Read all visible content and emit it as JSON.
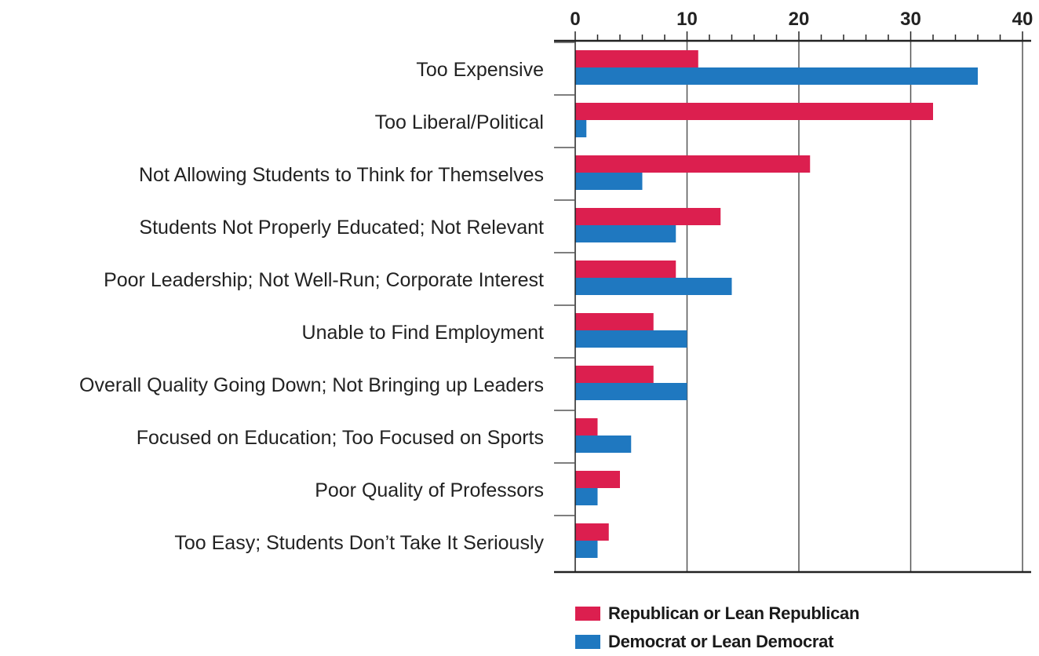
{
  "chart_data": {
    "type": "bar",
    "orientation": "horizontal",
    "categories": [
      "Too Expensive",
      "Too Liberal/Political",
      "Not Allowing Students to Think for Themselves",
      "Students Not Properly Educated; Not Relevant",
      "Poor Leadership; Not Well-Run; Corporate Interest",
      "Unable to Find Employment",
      "Overall Quality Going Down; Not Bringing up Leaders",
      "Focused on Education; Too Focused on Sports",
      "Poor Quality of Professors",
      "Too Easy; Students Don’t Take It Seriously"
    ],
    "series": [
      {
        "name": "Republican or Lean Republican",
        "color": "#dc1f4f",
        "values": [
          11,
          32,
          21,
          13,
          9,
          7,
          7,
          2,
          4,
          3
        ]
      },
      {
        "name": "Democrat or Lean Democrat",
        "color": "#1f78c0",
        "values": [
          36,
          1,
          6,
          9,
          14,
          10,
          10,
          5,
          2,
          2
        ]
      }
    ],
    "xlim": [
      0,
      40
    ],
    "x_ticks": [
      "0",
      "10",
      "20",
      "30",
      "40"
    ],
    "minor_tick_step": 2,
    "axis_position": "top",
    "grid": true,
    "legend_position": "bottom"
  }
}
